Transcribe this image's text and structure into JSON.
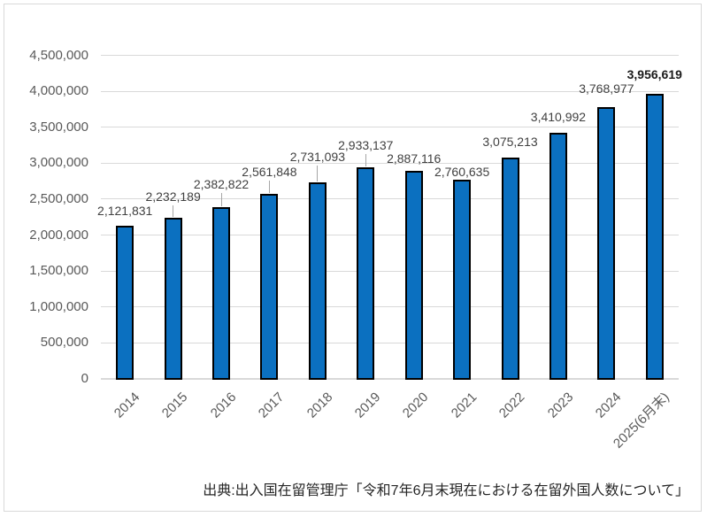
{
  "chart_data": {
    "type": "bar",
    "title": "",
    "xlabel": "",
    "ylabel": "",
    "legend": "none",
    "grid": true,
    "categories": [
      "2014",
      "2015",
      "2016",
      "2017",
      "2018",
      "2019",
      "2020",
      "2021",
      "2022",
      "2023",
      "2024",
      "2025(6月末)"
    ],
    "values": [
      2121831,
      2232189,
      2382822,
      2561848,
      2731093,
      2933137,
      2887116,
      2760635,
      3075213,
      3410992,
      3768977,
      3956619
    ],
    "value_labels": [
      "2,121,831",
      "2,232,189",
      "2,382,822",
      "2,561,848",
      "2,731,093",
      "2,933,137",
      "2,887,116",
      "2,760,635",
      "3,075,213",
      "3,410,992",
      "3,768,977",
      "3,956,619"
    ],
    "emphasized_index": 11,
    "ylim": [
      0,
      4500000
    ],
    "ytick_interval": 500000,
    "ytick_labels": [
      "0",
      "500,000",
      "1,000,000",
      "1,500,000",
      "2,000,000",
      "2,500,000",
      "3,000,000",
      "3,500,000",
      "4,000,000",
      "4,500,000"
    ],
    "bar_color": "#0B70C0",
    "bar_border_color": "#000000",
    "source_note": "出典:出入国在留管理庁「令和7年6月末現在における在留外国人数について」"
  }
}
